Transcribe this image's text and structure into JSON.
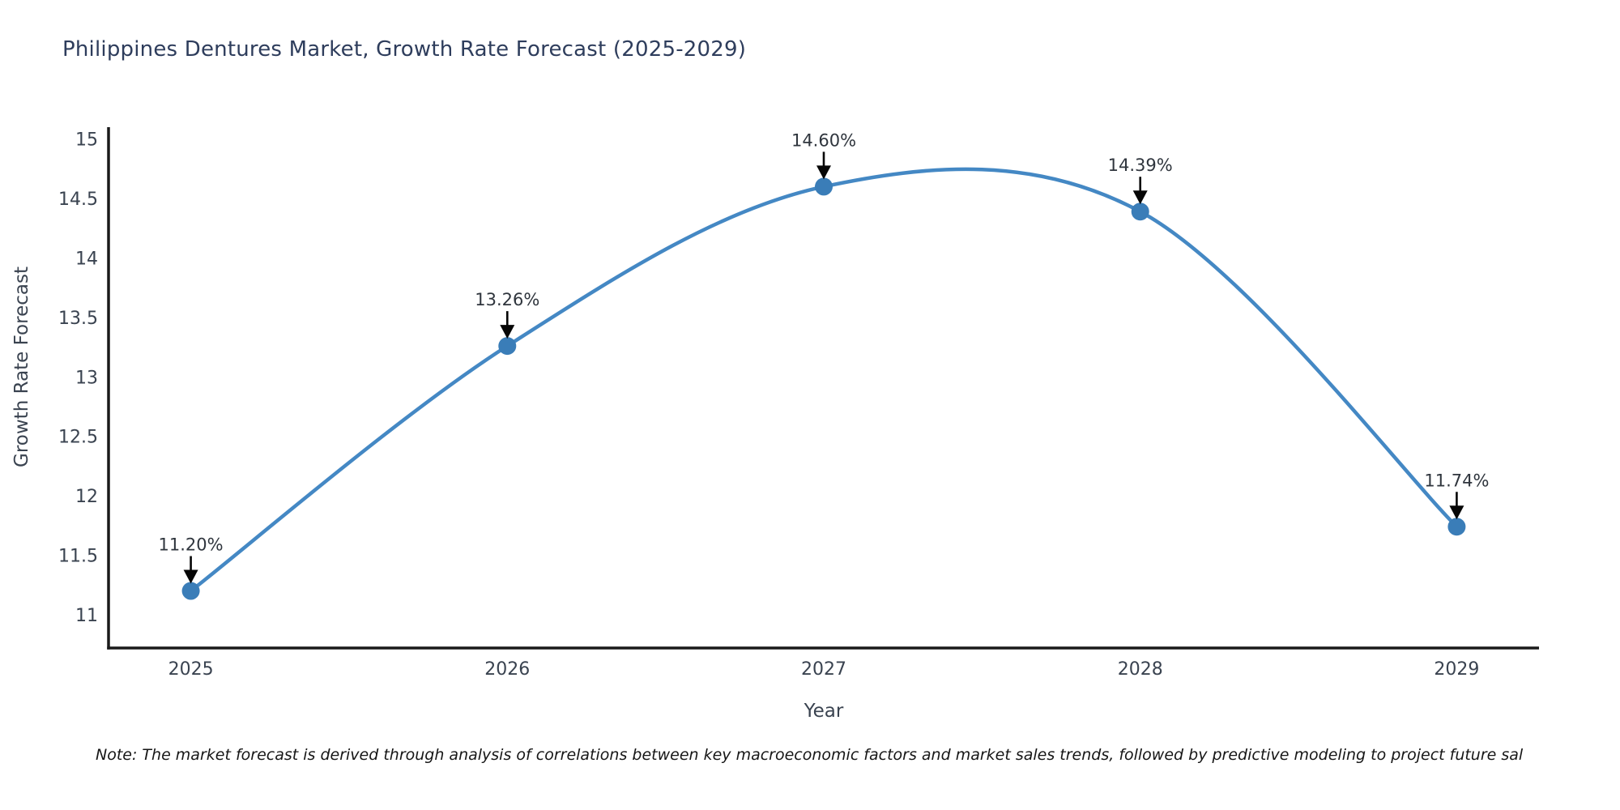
{
  "chart": {
    "title": "Philippines Dentures Market, Growth Rate Forecast (2025-2029)",
    "y_axis_title": "Growth Rate Forecast",
    "x_axis_title": "Year"
  },
  "footnote": "Note: The market forecast is derived through analysis of correlations between key macroeconomic factors and market sales trends, followed by predictive modeling to project future sal",
  "chart_data": {
    "type": "line",
    "line_shape": "spline",
    "title": "Philippines Dentures Market, Growth Rate Forecast (2025-2029)",
    "xlabel": "Year",
    "ylabel": "Growth Rate Forecast",
    "x": [
      2025,
      2026,
      2027,
      2028,
      2029
    ],
    "x_tick_labels": [
      "2025",
      "2026",
      "2027",
      "2028",
      "2029"
    ],
    "values": [
      11.2,
      13.26,
      14.6,
      14.39,
      11.74
    ],
    "point_labels": [
      "11.20%",
      "13.26%",
      "14.60%",
      "14.39%",
      "11.74%"
    ],
    "y_ticks": [
      11,
      11.5,
      12,
      12.5,
      13,
      13.5,
      14,
      14.5,
      15
    ],
    "y_tick_labels": [
      "11",
      "11.5",
      "12",
      "12.5",
      "13",
      "13.5",
      "14",
      "14.5",
      "15"
    ],
    "x_range": [
      2024.74,
      2029.26
    ],
    "y_range": [
      10.72,
      15.1
    ],
    "grid": false,
    "legend": false,
    "annotations_have_arrows": true,
    "line_color": "#4488c4",
    "marker_color": "#3a7db8",
    "annotation_text_color": "#2f353d",
    "annotation_arrow_color": "#060606",
    "tick_text_color": "#3a4350",
    "axis_line_color": "#1a1a1a"
  }
}
